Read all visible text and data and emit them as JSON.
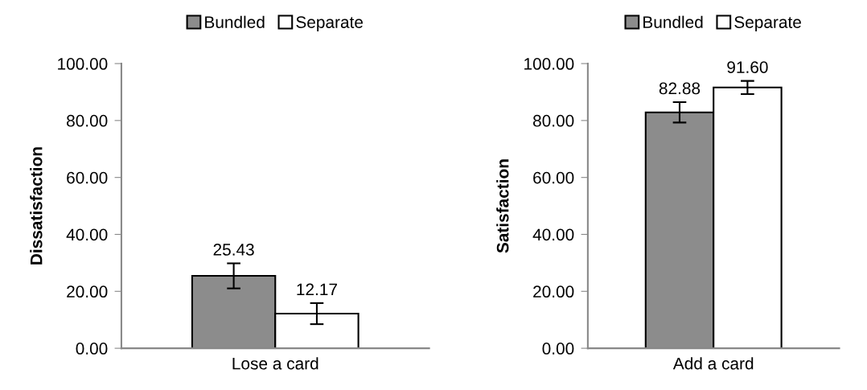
{
  "chart_data": [
    {
      "type": "bar",
      "ylabel": "Dissatisfaction",
      "categories": [
        "Lose a card"
      ],
      "ylim": [
        0,
        100
      ],
      "yticks": [
        {
          "value": 0,
          "label": "0.00"
        },
        {
          "value": 20,
          "label": "20.00"
        },
        {
          "value": 40,
          "label": "40.00"
        },
        {
          "value": 60,
          "label": "60.00"
        },
        {
          "value": 80,
          "label": "80.00"
        },
        {
          "value": 100,
          "label": "100.00"
        }
      ],
      "legend": "top",
      "grid": false,
      "series": [
        {
          "name": "Bundled",
          "color": "#8c8c8c",
          "values": [
            25.43
          ],
          "value_labels": [
            "25.43"
          ],
          "errors": [
            4.4
          ]
        },
        {
          "name": "Separate",
          "color": "#ffffff",
          "values": [
            12.17
          ],
          "value_labels": [
            "12.17"
          ],
          "errors": [
            3.7
          ]
        }
      ]
    },
    {
      "type": "bar",
      "ylabel": "Satisfaction",
      "categories": [
        "Add a card"
      ],
      "ylim": [
        0,
        100
      ],
      "yticks": [
        {
          "value": 0,
          "label": "0.00"
        },
        {
          "value": 20,
          "label": "20.00"
        },
        {
          "value": 40,
          "label": "40.00"
        },
        {
          "value": 60,
          "label": "60.00"
        },
        {
          "value": 80,
          "label": "80.00"
        },
        {
          "value": 100,
          "label": "100.00"
        }
      ],
      "legend": "top",
      "grid": false,
      "series": [
        {
          "name": "Bundled",
          "color": "#8c8c8c",
          "values": [
            82.88
          ],
          "value_labels": [
            "82.88"
          ],
          "errors": [
            3.6
          ]
        },
        {
          "name": "Separate",
          "color": "#ffffff",
          "values": [
            91.6
          ],
          "value_labels": [
            "91.60"
          ],
          "errors": [
            2.3
          ]
        }
      ]
    }
  ]
}
